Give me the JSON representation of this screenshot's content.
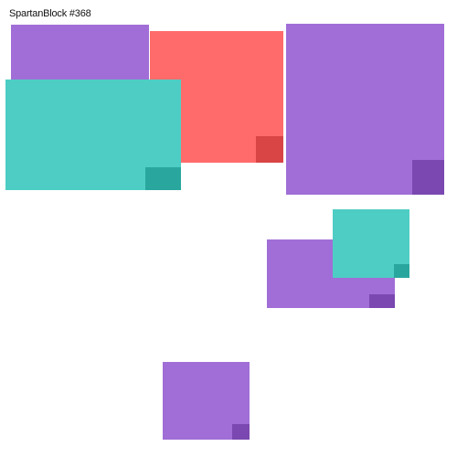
{
  "title": "SpartanBlock #368",
  "colors": {
    "purple": "#a06ed6",
    "purple_dark": "#7a48b0",
    "teal": "#4ecdc4",
    "teal_dark": "#29a79e",
    "red": "#ff6b6b",
    "red_dark": "#d94545",
    "background": "#ffffff"
  },
  "blocks": [
    {
      "name": "block-purple-top-left",
      "color": "purple"
    },
    {
      "name": "block-red-top-center",
      "color": "red"
    },
    {
      "name": "block-teal-top-left",
      "color": "teal"
    },
    {
      "name": "block-purple-top-right",
      "color": "purple"
    },
    {
      "name": "block-purple-middle-right",
      "color": "purple"
    },
    {
      "name": "block-teal-middle-right",
      "color": "teal"
    },
    {
      "name": "block-purple-bottom-center",
      "color": "purple"
    }
  ]
}
